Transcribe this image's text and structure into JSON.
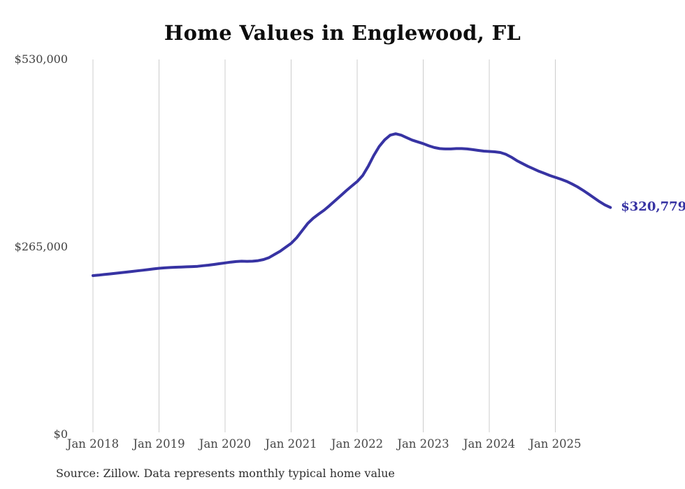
{
  "chart_data": {
    "type": "line",
    "title": "Home Values in Englewood, FL",
    "source": "Source: Zillow. Data represents monthly typical home value",
    "end_label": "$320,779",
    "line_color": "#3733a3",
    "grid_color": "#cccccc",
    "ylim": [
      0,
      530000
    ],
    "y_tick_labels": [
      "$530,000",
      "$265,000",
      "$0"
    ],
    "y_tick_values": [
      530000,
      265000,
      0
    ],
    "x_tick_labels": [
      "Jan 2018",
      "Jan 2019",
      "Jan 2020",
      "Jan 2021",
      "Jan 2022",
      "Jan 2023",
      "Jan 2024",
      "Jan 2025"
    ],
    "frequency": "monthly",
    "x_start": "Jan 2018",
    "x_end": "Nov 2025",
    "legend": "none",
    "grid": "vertical-only",
    "series": [
      {
        "name": "Typical home value",
        "values": [
          224500,
          225200,
          226000,
          226800,
          227600,
          228500,
          229400,
          230300,
          231200,
          232100,
          233000,
          234000,
          234800,
          235400,
          235900,
          236300,
          236600,
          236900,
          237200,
          237600,
          238500,
          239300,
          240300,
          241400,
          242500,
          243500,
          244300,
          244800,
          244600,
          244800,
          245600,
          247200,
          250000,
          254500,
          259000,
          264500,
          270000,
          278000,
          288000,
          298000,
          305500,
          311500,
          317000,
          323500,
          330500,
          337500,
          344500,
          351000,
          357500,
          366000,
          379000,
          394000,
          407000,
          416500,
          423000,
          425000,
          423000,
          419500,
          416000,
          413500,
          411000,
          408000,
          405500,
          404000,
          403500,
          403500,
          404000,
          404000,
          403500,
          402500,
          401500,
          400500,
          400000,
          399500,
          398500,
          396000,
          392000,
          387000,
          383000,
          379000,
          375500,
          372000,
          369000,
          366000,
          363400,
          360800,
          357800,
          354200,
          350000,
          345200,
          340000,
          334600,
          329200,
          324400,
          320779
        ]
      }
    ],
    "final_value": 320779
  }
}
